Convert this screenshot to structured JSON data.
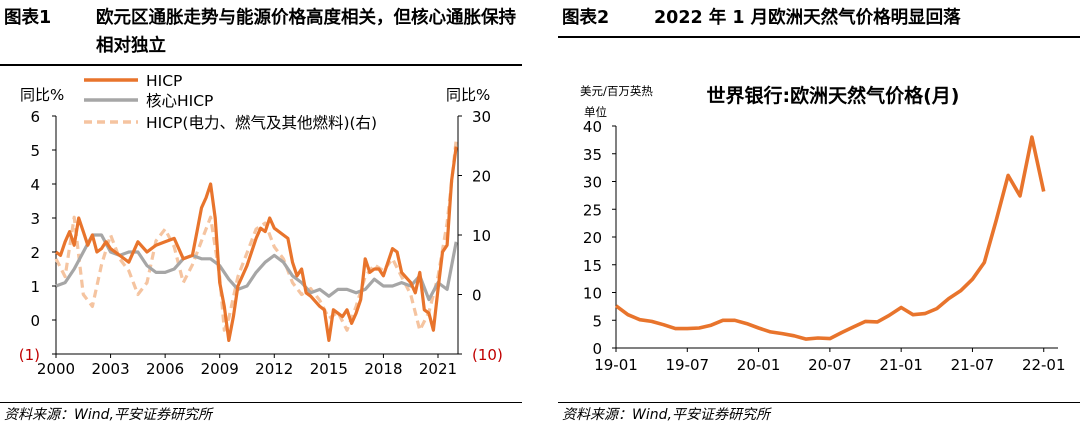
{
  "left": {
    "title_num": "图表1",
    "title_text": "欧元区通胀走势与能源价格高度相关，但核心通胀保持相对独立",
    "source": "资料来源：Wind,平安证券研究所",
    "chart_data": {
      "type": "line",
      "y_left_label": "同比%",
      "y_right_label": "同比%",
      "y_left_ticks": [
        "6",
        "5",
        "4",
        "3",
        "2",
        "1",
        "0",
        "(1)"
      ],
      "y_right_ticks": [
        "30",
        "20",
        "10",
        "0",
        "(10)"
      ],
      "x_ticks": [
        "2000",
        "2003",
        "2006",
        "2009",
        "2012",
        "2015",
        "2018",
        "2021"
      ],
      "ylim_left": [
        -1,
        6
      ],
      "ylim_right": [
        -10,
        30
      ],
      "xlim": [
        2000,
        2022.1
      ],
      "colors": {
        "hicp": "#e8742c",
        "core": "#a6a6a6",
        "energy": "#f5c4a0",
        "negative_axis": "#c00000"
      },
      "series": [
        {
          "name": "HICP",
          "axis": "left",
          "x": [
            2000.0,
            2000.25,
            2000.5,
            2000.75,
            2001.0,
            2001.25,
            2001.5,
            2001.75,
            2002.0,
            2002.25,
            2002.5,
            2002.75,
            2003.0,
            2003.5,
            2004.0,
            2004.5,
            2005.0,
            2005.5,
            2006.0,
            2006.5,
            2007.0,
            2007.5,
            2007.75,
            2008.0,
            2008.25,
            2008.5,
            2008.75,
            2009.0,
            2009.25,
            2009.5,
            2009.75,
            2010.0,
            2010.5,
            2011.0,
            2011.25,
            2011.5,
            2011.75,
            2012.0,
            2012.5,
            2012.75,
            2013.0,
            2013.25,
            2013.5,
            2013.75,
            2014.0,
            2014.5,
            2014.75,
            2015.0,
            2015.25,
            2015.5,
            2015.75,
            2016.0,
            2016.25,
            2016.5,
            2016.75,
            2017.0,
            2017.25,
            2017.5,
            2017.75,
            2018.0,
            2018.5,
            2018.75,
            2019.0,
            2019.5,
            2019.75,
            2020.0,
            2020.25,
            2020.5,
            2020.75,
            2021.0,
            2021.25,
            2021.5,
            2021.75,
            2022.0
          ],
          "values": [
            2.0,
            1.9,
            2.3,
            2.6,
            2.2,
            3.0,
            2.6,
            2.2,
            2.5,
            2.0,
            2.1,
            2.3,
            2.1,
            1.9,
            1.7,
            2.3,
            2.0,
            2.2,
            2.3,
            2.4,
            1.8,
            1.9,
            2.6,
            3.3,
            3.6,
            4.0,
            3.0,
            1.1,
            0.4,
            -0.6,
            0.1,
            1.0,
            1.6,
            2.4,
            2.7,
            2.6,
            3.0,
            2.7,
            2.5,
            2.4,
            1.7,
            1.3,
            1.5,
            0.8,
            0.7,
            0.4,
            0.3,
            -0.6,
            0.3,
            0.2,
            0.1,
            0.3,
            -0.1,
            0.2,
            0.6,
            1.8,
            1.4,
            1.5,
            1.5,
            1.3,
            2.1,
            2.0,
            1.4,
            1.1,
            0.8,
            1.4,
            0.3,
            0.2,
            -0.3,
            0.9,
            2.0,
            2.2,
            4.1,
            5.1
          ]
        },
        {
          "name": "核心HICP",
          "axis": "left",
          "x": [
            2000.0,
            2000.5,
            2001.0,
            2001.5,
            2002.0,
            2002.5,
            2003.0,
            2003.5,
            2004.0,
            2004.5,
            2005.0,
            2005.5,
            2006.0,
            2006.5,
            2007.0,
            2007.5,
            2008.0,
            2008.5,
            2009.0,
            2009.5,
            2010.0,
            2010.5,
            2011.0,
            2011.5,
            2012.0,
            2012.5,
            2013.0,
            2013.5,
            2014.0,
            2014.5,
            2015.0,
            2015.5,
            2016.0,
            2016.5,
            2017.0,
            2017.5,
            2018.0,
            2018.5,
            2019.0,
            2019.5,
            2020.0,
            2020.5,
            2021.0,
            2021.5,
            2022.0
          ],
          "values": [
            1.0,
            1.1,
            1.5,
            2.0,
            2.5,
            2.5,
            2.0,
            1.9,
            2.0,
            2.0,
            1.6,
            1.4,
            1.4,
            1.5,
            1.8,
            1.9,
            1.8,
            1.8,
            1.6,
            1.2,
            0.9,
            1.0,
            1.4,
            1.7,
            1.9,
            1.7,
            1.3,
            1.1,
            0.8,
            0.9,
            0.7,
            0.9,
            0.9,
            0.8,
            0.9,
            1.2,
            1.0,
            1.0,
            1.1,
            1.0,
            1.3,
            0.6,
            1.1,
            0.9,
            2.3
          ]
        },
        {
          "name": "HICP(电力、燃气及其他燃料)(右)",
          "axis": "right",
          "x": [
            2000.0,
            2000.5,
            2001.0,
            2001.5,
            2002.0,
            2002.5,
            2003.0,
            2003.5,
            2004.0,
            2004.5,
            2005.0,
            2005.5,
            2006.0,
            2006.5,
            2007.0,
            2007.5,
            2008.0,
            2008.5,
            2009.0,
            2009.25,
            2009.5,
            2010.0,
            2010.5,
            2011.0,
            2011.5,
            2012.0,
            2012.5,
            2013.0,
            2013.5,
            2014.0,
            2014.5,
            2015.0,
            2015.5,
            2016.0,
            2016.5,
            2017.0,
            2017.5,
            2018.0,
            2018.5,
            2019.0,
            2019.5,
            2020.0,
            2020.5,
            2021.0,
            2021.5,
            2022.0
          ],
          "values": [
            6,
            3,
            13,
            0,
            -2,
            5,
            10,
            6,
            4,
            0,
            2,
            9,
            11,
            8,
            2,
            5,
            9,
            13,
            3,
            -6,
            -4,
            3,
            7,
            11,
            12,
            8,
            6,
            2,
            0,
            1,
            -1,
            -4,
            -3,
            -6,
            -2,
            3,
            5,
            4,
            6,
            3,
            0,
            -6,
            -3,
            3,
            12,
            26
          ]
        }
      ]
    }
  },
  "right": {
    "title_num": "图表2",
    "title_text": "2022 年 1 月欧洲天然气价格明显回落",
    "source": "资料来源：Wind,平安证券研究所",
    "chart_data": {
      "type": "line",
      "title": "世界银行:欧洲天然气价格(月)",
      "unit_line1": "美元/百万英热",
      "unit_line2": "单位",
      "y_ticks": [
        "40",
        "35",
        "30",
        "25",
        "20",
        "15",
        "10",
        "5",
        "0"
      ],
      "x_ticks": [
        "19-01",
        "19-07",
        "20-01",
        "20-07",
        "21-01",
        "21-07",
        "22-01"
      ],
      "ylim": [
        0,
        40
      ],
      "color": "#e8742c",
      "series": [
        {
          "name": "",
          "x": [
            "2019-01",
            "2019-02",
            "2019-03",
            "2019-04",
            "2019-05",
            "2019-06",
            "2019-07",
            "2019-08",
            "2019-09",
            "2019-10",
            "2019-11",
            "2019-12",
            "2020-01",
            "2020-02",
            "2020-03",
            "2020-04",
            "2020-05",
            "2020-06",
            "2020-07",
            "2020-08",
            "2020-09",
            "2020-10",
            "2020-11",
            "2020-12",
            "2021-01",
            "2021-02",
            "2021-03",
            "2021-04",
            "2021-05",
            "2021-06",
            "2021-07",
            "2021-08",
            "2021-09",
            "2021-10",
            "2021-11",
            "2021-12",
            "2022-01"
          ],
          "values": [
            7.6,
            6.0,
            5.1,
            4.8,
            4.2,
            3.5,
            3.5,
            3.6,
            4.1,
            5.0,
            5.0,
            4.4,
            3.6,
            2.9,
            2.6,
            2.2,
            1.6,
            1.8,
            1.7,
            2.8,
            3.8,
            4.8,
            4.7,
            5.9,
            7.3,
            6.0,
            6.2,
            7.1,
            8.9,
            10.3,
            12.4,
            15.4,
            23.0,
            31.1,
            27.4,
            38.0,
            28.2
          ]
        }
      ]
    }
  }
}
